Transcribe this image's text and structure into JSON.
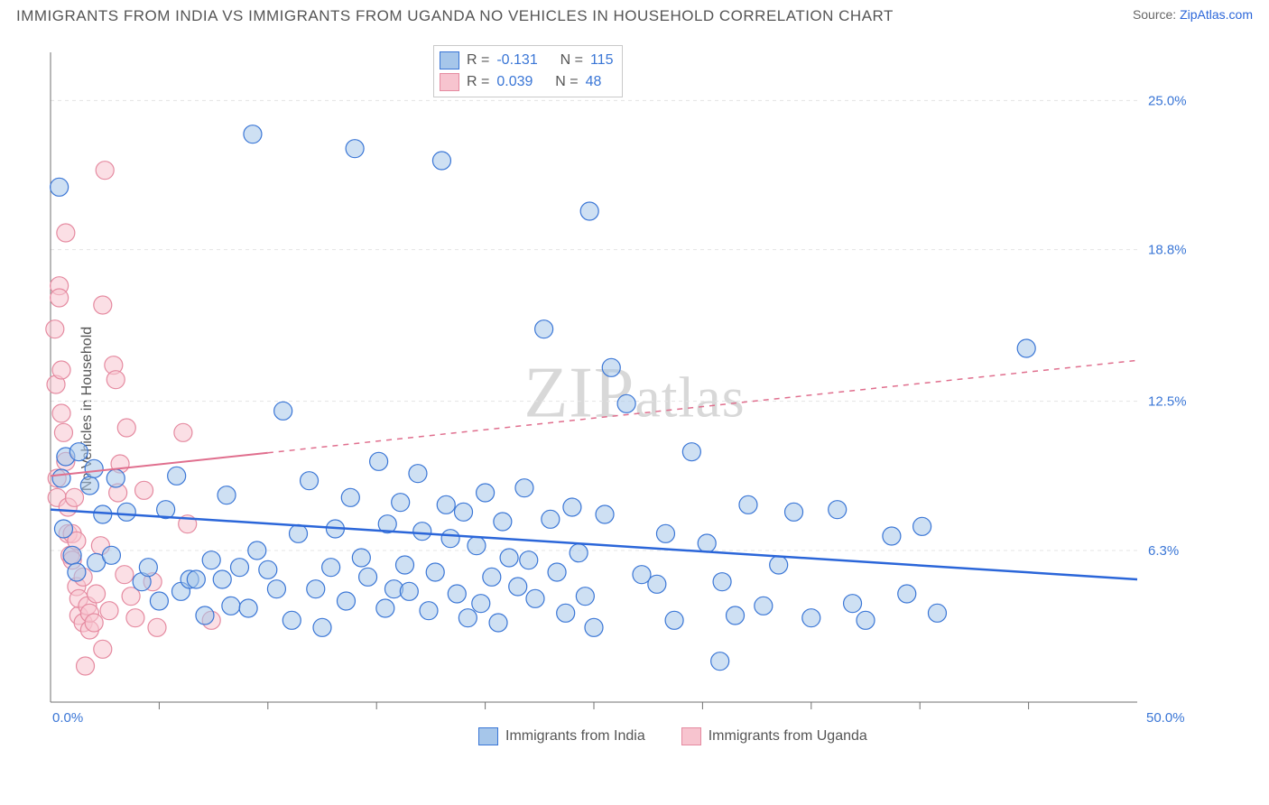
{
  "header": {
    "title": "IMMIGRANTS FROM INDIA VS IMMIGRANTS FROM UGANDA NO VEHICLES IN HOUSEHOLD CORRELATION CHART",
    "source_prefix": "Source: ",
    "source_link": "ZipAtlas.com"
  },
  "axis": {
    "ylabel": "No Vehicles in Household",
    "x_min_label": "0.0%",
    "x_max_label": "50.0%",
    "y_ticks": [
      {
        "v": 6.3,
        "label": "6.3%"
      },
      {
        "v": 12.5,
        "label": "12.5%"
      },
      {
        "v": 18.8,
        "label": "18.8%"
      },
      {
        "v": 25.0,
        "label": "25.0%"
      }
    ]
  },
  "watermark": {
    "zip": "ZIP",
    "atlas": "atlas"
  },
  "correlation_box": {
    "rows": [
      {
        "series": "india",
        "r_label": "R =",
        "r": "-0.131",
        "n_label": "N =",
        "n": "115"
      },
      {
        "series": "uganda",
        "r_label": "R =",
        "r": "0.039",
        "n_label": "N =",
        "n": "48"
      }
    ]
  },
  "legend": {
    "india": "Immigrants from India",
    "uganda": "Immigrants from Uganda"
  },
  "chart": {
    "type": "scatter",
    "xlim": [
      0,
      50
    ],
    "ylim": [
      0,
      27
    ],
    "marker_radius": 10,
    "background_color": "#ffffff",
    "grid_color": "#e4e4e4",
    "series": {
      "india": {
        "fill": "#a6c6ea",
        "stroke": "#3a76d6",
        "fill_opacity": 0.55,
        "trend": {
          "x1": 0,
          "y1": 8.0,
          "x2": 50,
          "y2": 5.1,
          "color": "#2b66d9",
          "width": 2.5
        },
        "points": [
          [
            0.4,
            21.4
          ],
          [
            0.7,
            10.2
          ],
          [
            0.5,
            9.3
          ],
          [
            1.3,
            10.4
          ],
          [
            1.8,
            9.0
          ],
          [
            2.0,
            9.7
          ],
          [
            2.4,
            7.8
          ],
          [
            0.6,
            7.2
          ],
          [
            1.0,
            6.1
          ],
          [
            1.2,
            5.4
          ],
          [
            2.1,
            5.8
          ],
          [
            2.8,
            6.1
          ],
          [
            3.0,
            9.3
          ],
          [
            3.5,
            7.9
          ],
          [
            4.2,
            5.0
          ],
          [
            4.5,
            5.6
          ],
          [
            5.0,
            4.2
          ],
          [
            5.3,
            8.0
          ],
          [
            5.8,
            9.4
          ],
          [
            6.0,
            4.6
          ],
          [
            6.4,
            5.1
          ],
          [
            6.7,
            5.1
          ],
          [
            7.1,
            3.6
          ],
          [
            7.4,
            5.9
          ],
          [
            7.9,
            5.1
          ],
          [
            8.1,
            8.6
          ],
          [
            8.3,
            4.0
          ],
          [
            8.7,
            5.6
          ],
          [
            9.1,
            3.9
          ],
          [
            9.3,
            23.6
          ],
          [
            9.5,
            6.3
          ],
          [
            10.0,
            5.5
          ],
          [
            10.4,
            4.7
          ],
          [
            10.7,
            12.1
          ],
          [
            11.1,
            3.4
          ],
          [
            11.4,
            7.0
          ],
          [
            11.9,
            9.2
          ],
          [
            12.2,
            4.7
          ],
          [
            12.5,
            3.1
          ],
          [
            12.9,
            5.6
          ],
          [
            13.1,
            7.2
          ],
          [
            13.6,
            4.2
          ],
          [
            13.8,
            8.5
          ],
          [
            14.0,
            23.0
          ],
          [
            14.3,
            6.0
          ],
          [
            14.6,
            5.2
          ],
          [
            15.1,
            10.0
          ],
          [
            15.4,
            3.9
          ],
          [
            15.5,
            7.4
          ],
          [
            15.8,
            4.7
          ],
          [
            16.1,
            8.3
          ],
          [
            16.3,
            5.7
          ],
          [
            16.5,
            4.6
          ],
          [
            16.9,
            9.5
          ],
          [
            17.1,
            7.1
          ],
          [
            17.4,
            3.8
          ],
          [
            17.7,
            5.4
          ],
          [
            18.0,
            22.5
          ],
          [
            18.2,
            8.2
          ],
          [
            18.4,
            6.8
          ],
          [
            18.7,
            4.5
          ],
          [
            19.0,
            7.9
          ],
          [
            19.2,
            3.5
          ],
          [
            19.6,
            6.5
          ],
          [
            19.8,
            4.1
          ],
          [
            20.0,
            8.7
          ],
          [
            20.3,
            5.2
          ],
          [
            20.6,
            3.3
          ],
          [
            20.8,
            7.5
          ],
          [
            21.1,
            6.0
          ],
          [
            21.5,
            4.8
          ],
          [
            21.8,
            8.9
          ],
          [
            22.0,
            5.9
          ],
          [
            22.3,
            4.3
          ],
          [
            22.7,
            15.5
          ],
          [
            23.0,
            7.6
          ],
          [
            23.3,
            5.4
          ],
          [
            23.7,
            3.7
          ],
          [
            24.0,
            8.1
          ],
          [
            24.3,
            6.2
          ],
          [
            24.6,
            4.4
          ],
          [
            24.8,
            20.4
          ],
          [
            25.0,
            3.1
          ],
          [
            25.5,
            7.8
          ],
          [
            25.8,
            13.9
          ],
          [
            26.5,
            12.4
          ],
          [
            27.2,
            5.3
          ],
          [
            27.9,
            4.9
          ],
          [
            28.3,
            7.0
          ],
          [
            28.7,
            3.4
          ],
          [
            29.5,
            10.4
          ],
          [
            30.2,
            6.6
          ],
          [
            30.9,
            5.0
          ],
          [
            31.5,
            3.6
          ],
          [
            32.1,
            8.2
          ],
          [
            32.8,
            4.0
          ],
          [
            33.5,
            5.7
          ],
          [
            34.2,
            7.9
          ],
          [
            35.0,
            3.5
          ],
          [
            36.2,
            8.0
          ],
          [
            36.9,
            4.1
          ],
          [
            37.5,
            3.4
          ],
          [
            38.7,
            6.9
          ],
          [
            39.4,
            4.5
          ],
          [
            40.1,
            7.3
          ],
          [
            40.8,
            3.7
          ],
          [
            44.9,
            14.7
          ],
          [
            30.8,
            1.7
          ]
        ]
      },
      "uganda": {
        "fill": "#f7c4cf",
        "stroke": "#e58aa0",
        "fill_opacity": 0.55,
        "trend": {
          "x1": 0,
          "y1": 9.4,
          "x2": 50,
          "y2": 14.2,
          "color": "#e06f8e",
          "width": 2,
          "solid_until_x": 10
        },
        "points": [
          [
            0.2,
            15.5
          ],
          [
            0.3,
            8.5
          ],
          [
            0.3,
            9.3
          ],
          [
            0.25,
            13.2
          ],
          [
            0.4,
            17.3
          ],
          [
            0.5,
            13.8
          ],
          [
            0.5,
            12.0
          ],
          [
            0.6,
            11.2
          ],
          [
            0.7,
            19.5
          ],
          [
            0.7,
            10.0
          ],
          [
            0.8,
            8.1
          ],
          [
            0.8,
            7.0
          ],
          [
            0.9,
            6.1
          ],
          [
            1.0,
            7.0
          ],
          [
            1.0,
            5.9
          ],
          [
            1.1,
            8.5
          ],
          [
            1.2,
            6.7
          ],
          [
            1.2,
            4.8
          ],
          [
            1.3,
            3.6
          ],
          [
            1.3,
            4.3
          ],
          [
            1.5,
            5.2
          ],
          [
            1.5,
            3.3
          ],
          [
            1.7,
            4.0
          ],
          [
            1.8,
            3.0
          ],
          [
            1.8,
            3.7
          ],
          [
            2.0,
            3.3
          ],
          [
            2.1,
            4.5
          ],
          [
            2.3,
            6.5
          ],
          [
            2.4,
            16.5
          ],
          [
            2.5,
            22.1
          ],
          [
            2.7,
            3.8
          ],
          [
            2.9,
            14.0
          ],
          [
            3.0,
            13.4
          ],
          [
            3.1,
            8.7
          ],
          [
            3.2,
            9.9
          ],
          [
            3.4,
            5.3
          ],
          [
            3.5,
            11.4
          ],
          [
            3.7,
            4.4
          ],
          [
            3.9,
            3.5
          ],
          [
            4.3,
            8.8
          ],
          [
            4.7,
            5.0
          ],
          [
            4.9,
            3.1
          ],
          [
            6.1,
            11.2
          ],
          [
            6.3,
            7.4
          ],
          [
            7.4,
            3.4
          ],
          [
            1.6,
            1.5
          ],
          [
            2.4,
            2.2
          ],
          [
            0.4,
            16.8
          ]
        ]
      }
    }
  }
}
